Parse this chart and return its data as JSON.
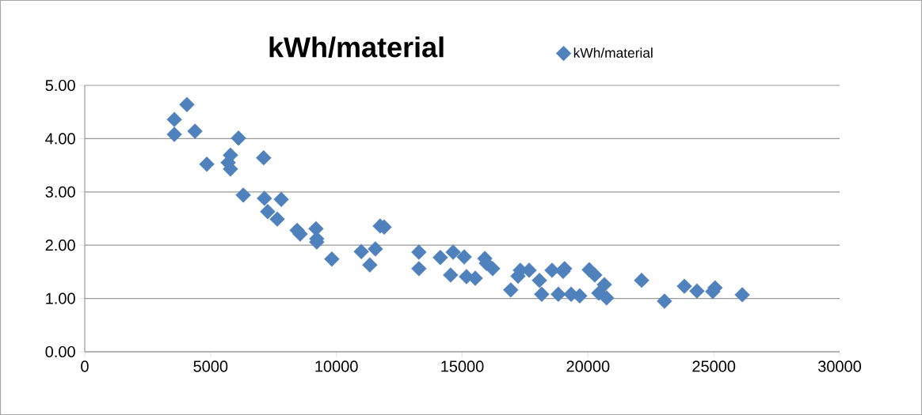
{
  "chart_data": {
    "type": "scatter",
    "title": "kWh/material",
    "x": [
      3560,
      4060,
      3560,
      4380,
      4850,
      6110,
      5790,
      5700,
      5790,
      7110,
      6300,
      7140,
      7810,
      7270,
      7650,
      8440,
      8560,
      9190,
      9220,
      9220,
      9820,
      10990,
      11330,
      11550,
      11740,
      11900,
      13280,
      13280,
      14130,
      14540,
      14640,
      15080,
      15170,
      15520,
      15900,
      15960,
      16210,
      16930,
      17220,
      17310,
      17660,
      18070,
      18160,
      18570,
      18820,
      19010,
      19070,
      19330,
      19670,
      20050,
      20270,
      20430,
      20650,
      20740,
      22130,
      23040,
      23830,
      24330,
      24960,
      25050,
      26130
    ],
    "series": [
      {
        "name": "kWh/material",
        "color": "#4f81bd",
        "values": [
          4.36,
          4.64,
          4.08,
          4.14,
          3.52,
          4.01,
          3.69,
          3.55,
          3.43,
          3.64,
          2.94,
          2.88,
          2.86,
          2.63,
          2.49,
          2.28,
          2.21,
          2.31,
          2.12,
          2.06,
          1.74,
          1.88,
          1.63,
          1.93,
          2.36,
          2.34,
          1.87,
          1.56,
          1.77,
          1.44,
          1.87,
          1.78,
          1.41,
          1.38,
          1.75,
          1.66,
          1.56,
          1.16,
          1.42,
          1.53,
          1.53,
          1.34,
          1.08,
          1.53,
          1.08,
          1.51,
          1.56,
          1.08,
          1.05,
          1.54,
          1.44,
          1.1,
          1.26,
          1.01,
          1.34,
          0.95,
          1.23,
          1.14,
          1.13,
          1.2,
          1.07
        ]
      }
    ],
    "xlim": [
      0,
      30000
    ],
    "xticks": [
      0,
      5000,
      10000,
      15000,
      20000,
      25000,
      30000
    ],
    "ylim": [
      0,
      5
    ],
    "yticks": [
      {
        "value": 0,
        "label": "0.00"
      },
      {
        "value": 1,
        "label": "1.00"
      },
      {
        "value": 2,
        "label": "2.00"
      },
      {
        "value": 3,
        "label": "3.00"
      },
      {
        "value": 4,
        "label": "4.00"
      },
      {
        "value": 5,
        "label": "5.00"
      }
    ],
    "grid": "y",
    "legend": "top right",
    "marker": "diamond"
  }
}
